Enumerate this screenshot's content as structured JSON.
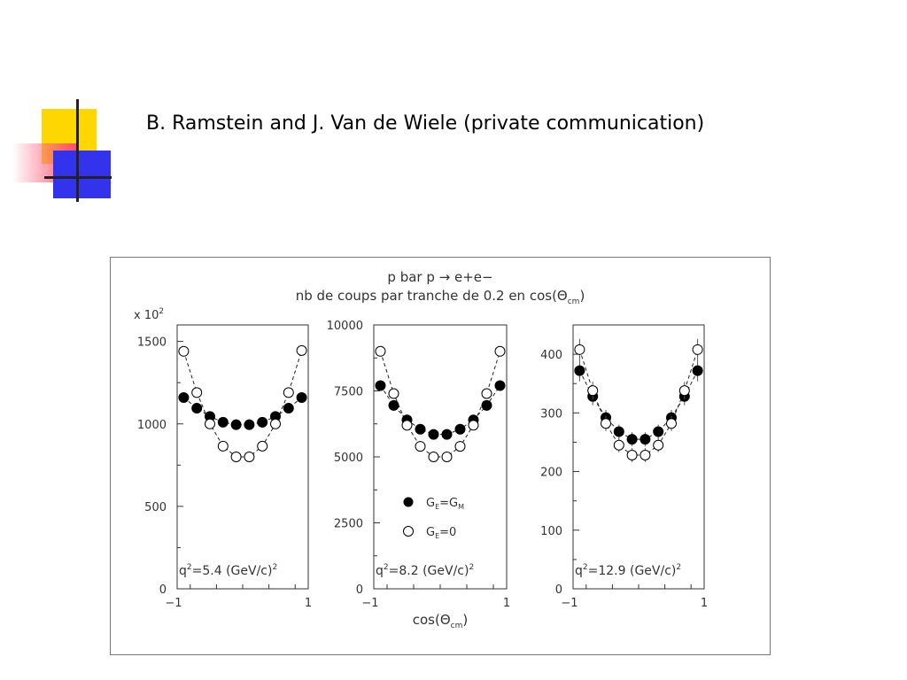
{
  "slide": {
    "title": "B. Ramstein and J. Van de Wiele (private communication)"
  },
  "colors": {
    "yellow": "#ffd700",
    "red": "#ff4d6a",
    "blue": "#3333ee",
    "cross": "#222222",
    "filled_marker": "#000000",
    "open_marker": "#000000"
  },
  "figure": {
    "title_line1": "p bar p → e+e−",
    "title_line2": "nb de coups par tranche de  0.2 en cos(Θ",
    "title_line2_sub": "cm",
    "title_line2_end": ")",
    "xlabel": "cos(Θ",
    "xlabel_sub": "cm",
    "xlabel_end": ")",
    "legend": {
      "filled": "G",
      "filled_sub1": "E",
      "filled_mid": "=G",
      "filled_sub2": "M",
      "open": "G",
      "open_sub": "E",
      "open_end": "=0"
    }
  },
  "chart_data": [
    {
      "type": "scatter",
      "multiplier_label": "x 10",
      "multiplier_exp": "2",
      "annotation": "q",
      "annotation_exp": "2",
      "annotation_end": "=5.4 (GeV/c)",
      "annotation_exp2": "2",
      "xlim": [
        -1,
        1
      ],
      "ylim": [
        0,
        1600
      ],
      "xticks": [
        "−1",
        "1"
      ],
      "yticks": [
        {
          "value": 0,
          "label": "0"
        },
        {
          "value": 500,
          "label": "500"
        },
        {
          "value": 1000,
          "label": "1000"
        },
        {
          "value": 1500,
          "label": "1500"
        }
      ],
      "x": [
        -0.9,
        -0.7,
        -0.5,
        -0.3,
        -0.1,
        0.1,
        0.3,
        0.5,
        0.7,
        0.9
      ],
      "series": [
        {
          "marker": "filled",
          "values": [
            1160,
            1095,
            1045,
            1010,
            995,
            995,
            1010,
            1045,
            1095,
            1160
          ]
        },
        {
          "marker": "open",
          "values": [
            1440,
            1190,
            1000,
            865,
            800,
            800,
            865,
            1000,
            1190,
            1445
          ]
        }
      ]
    },
    {
      "type": "scatter",
      "annotation": "q",
      "annotation_exp": "2",
      "annotation_end": "=8.2 (GeV/c)",
      "annotation_exp2": "2",
      "xlim": [
        -1,
        1
      ],
      "ylim": [
        0,
        10000
      ],
      "xticks": [
        "−1",
        "1"
      ],
      "yticks": [
        {
          "value": 0,
          "label": "0"
        },
        {
          "value": 2500,
          "label": "2500"
        },
        {
          "value": 5000,
          "label": "5000"
        },
        {
          "value": 7500,
          "label": "7500"
        },
        {
          "value": 10000,
          "label": "10000"
        }
      ],
      "x": [
        -0.9,
        -0.7,
        -0.5,
        -0.3,
        -0.1,
        0.1,
        0.3,
        0.5,
        0.7,
        0.9
      ],
      "series": [
        {
          "marker": "filled",
          "values": [
            7700,
            6950,
            6400,
            6050,
            5850,
            5850,
            6050,
            6400,
            6950,
            7700
          ]
        },
        {
          "marker": "open",
          "values": [
            9000,
            7400,
            6200,
            5400,
            5000,
            5000,
            5400,
            6200,
            7400,
            9000
          ]
        }
      ]
    },
    {
      "type": "scatter",
      "annotation": "q",
      "annotation_exp": "2",
      "annotation_end": "=12.9 (GeV/c)",
      "annotation_exp2": "2",
      "xlim": [
        -1,
        1
      ],
      "ylim": [
        0,
        450
      ],
      "xticks": [
        "−1",
        "1"
      ],
      "yticks": [
        {
          "value": 0,
          "label": "0"
        },
        {
          "value": 100,
          "label": "100"
        },
        {
          "value": 200,
          "label": "200"
        },
        {
          "value": 300,
          "label": "300"
        },
        {
          "value": 400,
          "label": "400"
        }
      ],
      "x": [
        -0.9,
        -0.7,
        -0.5,
        -0.3,
        -0.1,
        0.1,
        0.3,
        0.5,
        0.7,
        0.9
      ],
      "error_bars": [
        18,
        15,
        13,
        12,
        12,
        12,
        12,
        13,
        15,
        18
      ],
      "series": [
        {
          "marker": "filled",
          "values": [
            372,
            328,
            292,
            268,
            255,
            255,
            268,
            292,
            328,
            372
          ]
        },
        {
          "marker": "open",
          "values": [
            408,
            338,
            282,
            245,
            228,
            228,
            245,
            282,
            338,
            408
          ]
        }
      ]
    }
  ]
}
